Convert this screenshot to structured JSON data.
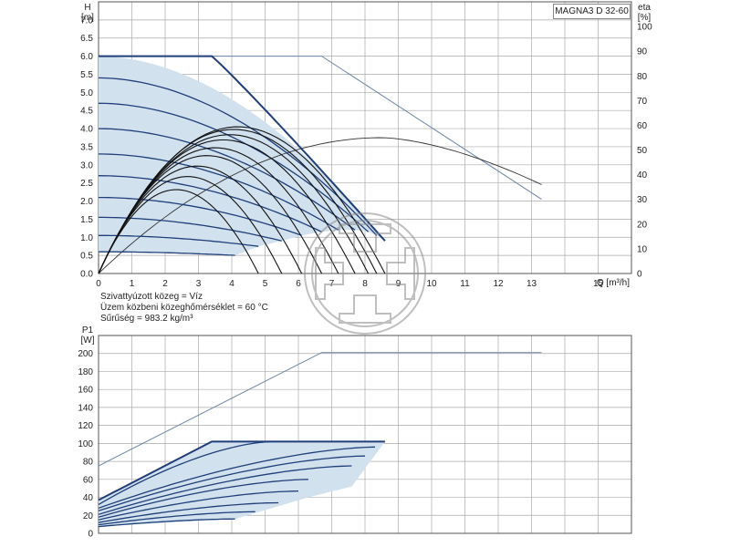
{
  "model": "MAGNA3 D 32-60",
  "top_axis": {
    "y_letter": "H",
    "y_unit": "[m]",
    "y2_letter": "eta",
    "y2_unit": "[%]",
    "x_label": "Q [m³/h]"
  },
  "bottom_axis": {
    "y_letter": "P1",
    "y_unit": "[W]"
  },
  "info": {
    "line1": "Szivattyúzott közeg = Víz",
    "line2": "Üzem közbeni közeghőmérséklet = 60 °C",
    "line3": "Sűrűség = 983.2 kg/m³"
  },
  "colors": {
    "curve": "#1f3f7a",
    "fill": "#d2e1ee",
    "max_curve": "#6a86a6",
    "efficiency": "#111111",
    "grid": "#aaaaaa"
  },
  "chart_data": [
    {
      "type": "line",
      "xlim": [
        0,
        16
      ],
      "ylim": [
        0,
        7.5
      ],
      "y2lim": [
        0,
        110
      ],
      "xticks": [
        0,
        1,
        2,
        3,
        4,
        5,
        6,
        7,
        8,
        9,
        10,
        11,
        12,
        13,
        15
      ],
      "yticks": [
        "0.0",
        "0.5",
        "1.0",
        "1.5",
        "2.0",
        "2.5",
        "3.0",
        "3.5",
        "4.0",
        "4.5",
        "5.0",
        "5.5",
        "6.0",
        "6.5",
        "7.0"
      ],
      "y2ticks": [
        0,
        10,
        20,
        30,
        40,
        50,
        60,
        70,
        80,
        90,
        100
      ],
      "head_curves": [
        {
          "shutoff": 6.0,
          "h_end": 0.9,
          "q_end": 8.6
        },
        {
          "shutoff": 5.4,
          "h_end": 1.05,
          "q_end": 8.35
        },
        {
          "shutoff": 4.7,
          "h_end": 1.15,
          "q_end": 8.1
        },
        {
          "shutoff": 4.0,
          "h_end": 1.2,
          "q_end": 7.7
        },
        {
          "shutoff": 3.3,
          "h_end": 1.2,
          "q_end": 7.2
        },
        {
          "shutoff": 2.7,
          "h_end": 1.15,
          "q_end": 6.7
        },
        {
          "shutoff": 2.1,
          "h_end": 1.05,
          "q_end": 6.1
        },
        {
          "shutoff": 1.55,
          "h_end": 0.9,
          "q_end": 5.5
        },
        {
          "shutoff": 1.05,
          "h_end": 0.75,
          "q_end": 4.8
        },
        {
          "shutoff": 0.6,
          "h_end": 0.5,
          "q_end": 4.1
        }
      ],
      "max_curve": [
        [
          0,
          6.0
        ],
        [
          6.7,
          6.0
        ],
        [
          13.3,
          2.05
        ]
      ],
      "max_eta_curve": [
        [
          0,
          0
        ],
        [
          4.0,
          40
        ],
        [
          8.5,
          55
        ],
        [
          13.3,
          36
        ]
      ],
      "eta_curves": [
        {
          "q_end": 8.6,
          "peak": 56
        },
        {
          "q_end": 8.35,
          "peak": 55
        },
        {
          "q_end": 8.1,
          "peak": 53
        },
        {
          "q_end": 7.7,
          "peak": 51
        },
        {
          "q_end": 7.2,
          "peak": 48
        },
        {
          "q_end": 6.7,
          "peak": 45
        },
        {
          "q_end": 6.1,
          "peak": 41
        },
        {
          "q_end": 5.5,
          "peak": 37
        },
        {
          "q_end": 4.8,
          "peak": 32
        }
      ]
    },
    {
      "type": "line",
      "xlim": [
        0,
        16
      ],
      "ylim": [
        0,
        220
      ],
      "yticks": [
        0,
        20,
        40,
        60,
        80,
        100,
        120,
        140,
        160,
        180,
        200
      ],
      "power_curves": [
        {
          "p0": 37,
          "p_end": 102,
          "q_end": 8.6
        },
        {
          "p0": 32,
          "p_end": 102,
          "q_end": 5.2
        },
        {
          "p0": 28,
          "p_end": 96,
          "q_end": 8.3
        },
        {
          "p0": 25,
          "p_end": 86,
          "q_end": 8.0
        },
        {
          "p0": 21,
          "p_end": 75,
          "q_end": 7.6
        },
        {
          "p0": 18,
          "p_end": 60,
          "q_end": 6.3
        },
        {
          "p0": 15,
          "p_end": 47,
          "q_end": 6.0
        },
        {
          "p0": 12,
          "p_end": 34,
          "q_end": 5.4
        },
        {
          "p0": 9.5,
          "p_end": 24,
          "q_end": 4.7
        },
        {
          "p0": 7.5,
          "p_end": 16,
          "q_end": 4.1
        }
      ],
      "max_curve": [
        [
          0,
          75
        ],
        [
          6.7,
          201
        ],
        [
          13.3,
          201
        ]
      ]
    }
  ]
}
